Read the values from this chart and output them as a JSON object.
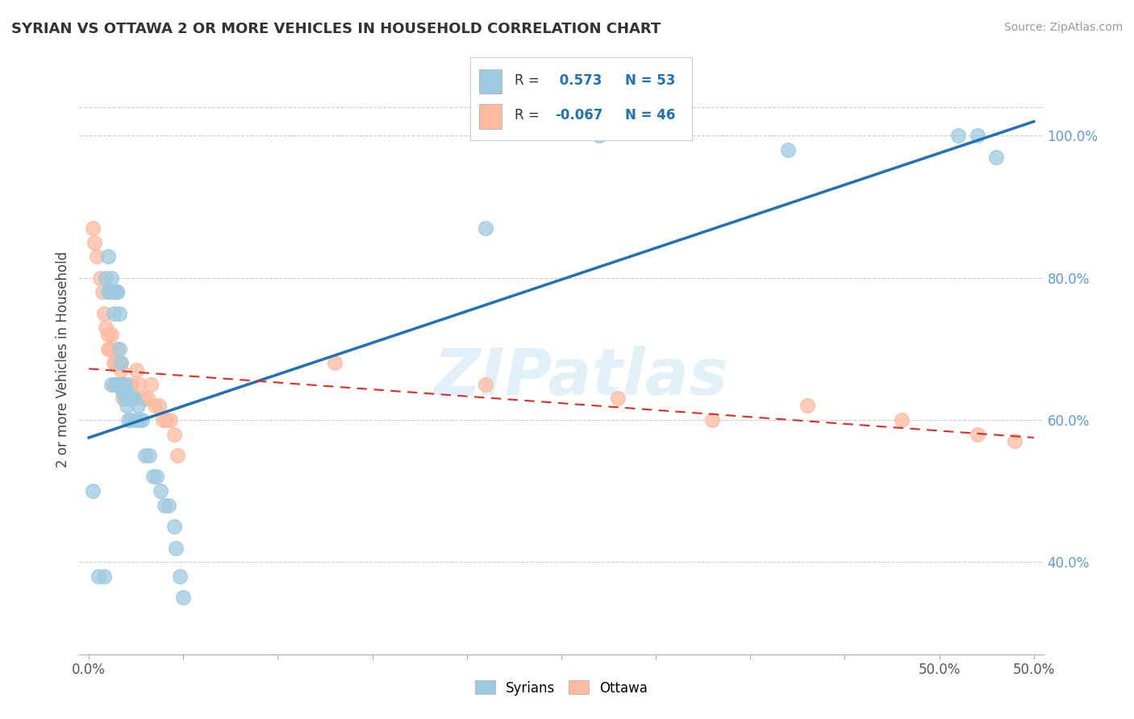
{
  "title": "SYRIAN VS OTTAWA 2 OR MORE VEHICLES IN HOUSEHOLD CORRELATION CHART",
  "source": "Source: ZipAtlas.com",
  "ylabel": "2 or more Vehicles in Household",
  "xlim": [
    -0.005,
    0.505
  ],
  "ylim": [
    0.27,
    1.1
  ],
  "xtick_positions": [
    0.0,
    0.05,
    0.1,
    0.15,
    0.2,
    0.25,
    0.3,
    0.35,
    0.4,
    0.45,
    0.5
  ],
  "xtick_labels_show": {
    "0.0": "0.0%",
    "0.5": "50.0%"
  },
  "ytick_positions": [
    0.4,
    0.6,
    0.8,
    1.0
  ],
  "ytick_labels": [
    "40.0%",
    "60.0%",
    "80.0%",
    "100.0%"
  ],
  "legend_r1_val": "0.573",
  "legend_n1": "N = 53",
  "legend_r2_val": "-0.067",
  "legend_n2": "N = 46",
  "blue_color": "#9ecae1",
  "pink_color": "#fcbba1",
  "trend_blue_color": "#2171b5",
  "trend_pink_color": "#de2d26",
  "watermark": "ZIPatlas",
  "blue_scatter_x": [
    0.002,
    0.005,
    0.008,
    0.009,
    0.01,
    0.01,
    0.011,
    0.012,
    0.012,
    0.013,
    0.013,
    0.014,
    0.014,
    0.015,
    0.015,
    0.015,
    0.016,
    0.016,
    0.017,
    0.017,
    0.018,
    0.018,
    0.019,
    0.019,
    0.02,
    0.02,
    0.021,
    0.021,
    0.022,
    0.022,
    0.023,
    0.024,
    0.025,
    0.026,
    0.027,
    0.028,
    0.03,
    0.032,
    0.034,
    0.036,
    0.038,
    0.04,
    0.042,
    0.045,
    0.046,
    0.048,
    0.05,
    0.21,
    0.27,
    0.37,
    0.46,
    0.47,
    0.48
  ],
  "blue_scatter_y": [
    0.5,
    0.38,
    0.38,
    0.8,
    0.83,
    0.78,
    0.78,
    0.65,
    0.8,
    0.75,
    0.78,
    0.78,
    0.65,
    0.78,
    0.78,
    0.65,
    0.75,
    0.7,
    0.68,
    0.65,
    0.65,
    0.64,
    0.63,
    0.65,
    0.64,
    0.62,
    0.63,
    0.6,
    0.63,
    0.6,
    0.63,
    0.63,
    0.6,
    0.62,
    0.6,
    0.6,
    0.55,
    0.55,
    0.52,
    0.52,
    0.5,
    0.48,
    0.48,
    0.45,
    0.42,
    0.38,
    0.35,
    0.87,
    1.0,
    0.98,
    1.0,
    1.0,
    0.97
  ],
  "pink_scatter_x": [
    0.002,
    0.003,
    0.004,
    0.006,
    0.007,
    0.008,
    0.009,
    0.01,
    0.01,
    0.011,
    0.012,
    0.013,
    0.013,
    0.014,
    0.015,
    0.015,
    0.016,
    0.017,
    0.017,
    0.018,
    0.018,
    0.019,
    0.02,
    0.021,
    0.022,
    0.023,
    0.025,
    0.027,
    0.029,
    0.031,
    0.033,
    0.035,
    0.037,
    0.039,
    0.041,
    0.043,
    0.045,
    0.047,
    0.13,
    0.21,
    0.28,
    0.33,
    0.38,
    0.43,
    0.47,
    0.49
  ],
  "pink_scatter_y": [
    0.87,
    0.85,
    0.83,
    0.8,
    0.78,
    0.75,
    0.73,
    0.72,
    0.7,
    0.7,
    0.72,
    0.68,
    0.65,
    0.68,
    0.7,
    0.65,
    0.68,
    0.67,
    0.65,
    0.65,
    0.63,
    0.65,
    0.63,
    0.65,
    0.65,
    0.63,
    0.67,
    0.65,
    0.63,
    0.63,
    0.65,
    0.62,
    0.62,
    0.6,
    0.6,
    0.6,
    0.58,
    0.55,
    0.68,
    0.65,
    0.63,
    0.6,
    0.62,
    0.6,
    0.58,
    0.57
  ],
  "blue_trend_x": [
    0.0,
    0.5
  ],
  "blue_trend_y": [
    0.575,
    1.02
  ],
  "pink_trend_x": [
    0.0,
    0.5
  ],
  "pink_trend_y": [
    0.672,
    0.575
  ]
}
